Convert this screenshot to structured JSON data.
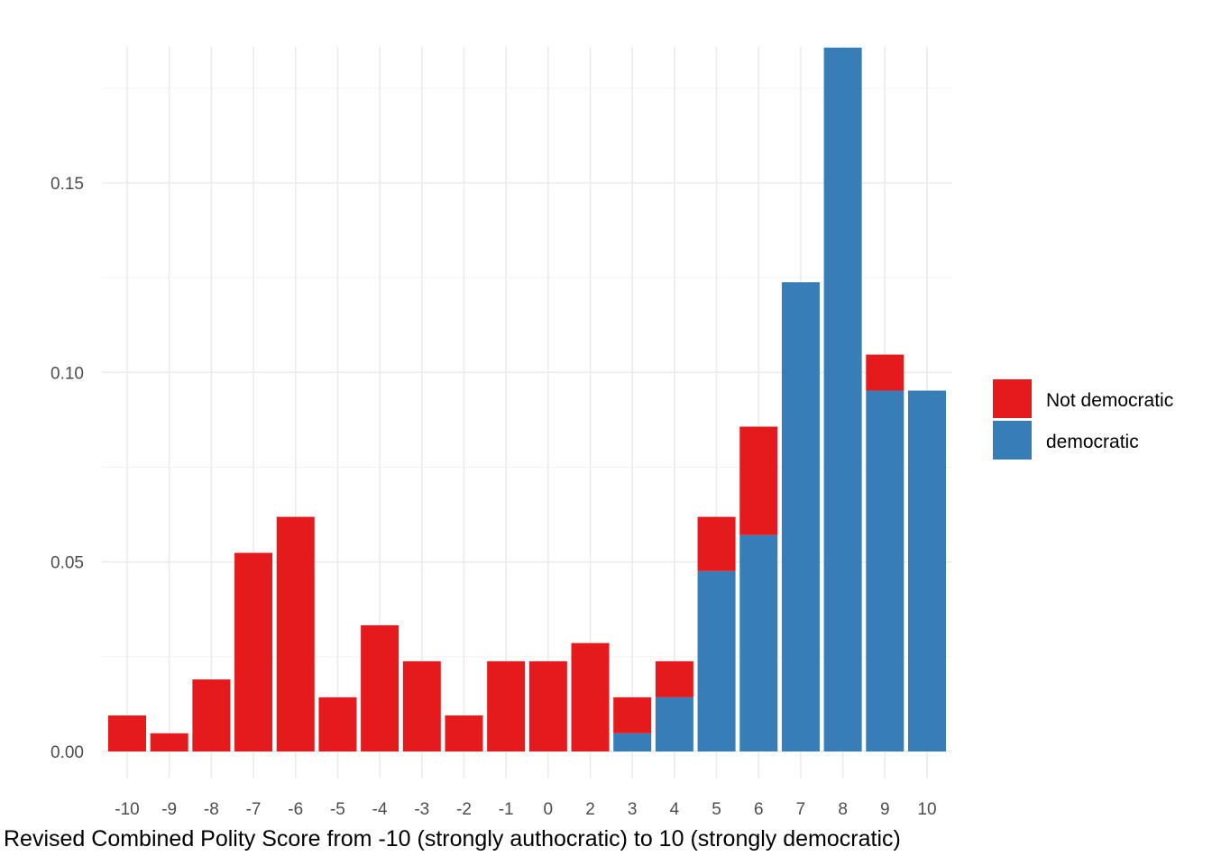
{
  "chart_data": {
    "type": "bar",
    "stacked": true,
    "title": "",
    "xlabel": "Revised Combined Polity Score from -10 (strongly authocratic) to 10 (strongly democratic)",
    "ylabel": "",
    "categories": [
      "-10",
      "-9",
      "-8",
      "-7",
      "-6",
      "-5",
      "-4",
      "-3",
      "-2",
      "-1",
      "0",
      "2",
      "3",
      "4",
      "5",
      "6",
      "7",
      "8",
      "9",
      "10"
    ],
    "ylim": [
      -0.007,
      0.186
    ],
    "yticks": [
      0.0,
      0.05,
      0.1,
      0.15
    ],
    "ytick_labels": [
      "0.00",
      "0.05",
      "0.10",
      "0.15"
    ],
    "grid": true,
    "legend_position": "right",
    "series": [
      {
        "name": "democratic",
        "color": "#377EB8",
        "values": [
          0,
          0,
          0,
          0,
          0,
          0,
          0,
          0,
          0,
          0,
          0,
          0,
          0.0048,
          0.0143,
          0.0476,
          0.0571,
          0.1238,
          0.1857,
          0.0952,
          0.0952
        ]
      },
      {
        "name": "Not democratic",
        "color": "#E41A1C",
        "values": [
          0.0095,
          0.0048,
          0.019,
          0.0524,
          0.0619,
          0.0143,
          0.0333,
          0.0238,
          0.0095,
          0.0238,
          0.0238,
          0.0286,
          0.0095,
          0.0095,
          0.0143,
          0.0286,
          0,
          0,
          0.0095,
          0
        ]
      }
    ],
    "legend_order": [
      "Not democratic",
      "democratic"
    ]
  }
}
